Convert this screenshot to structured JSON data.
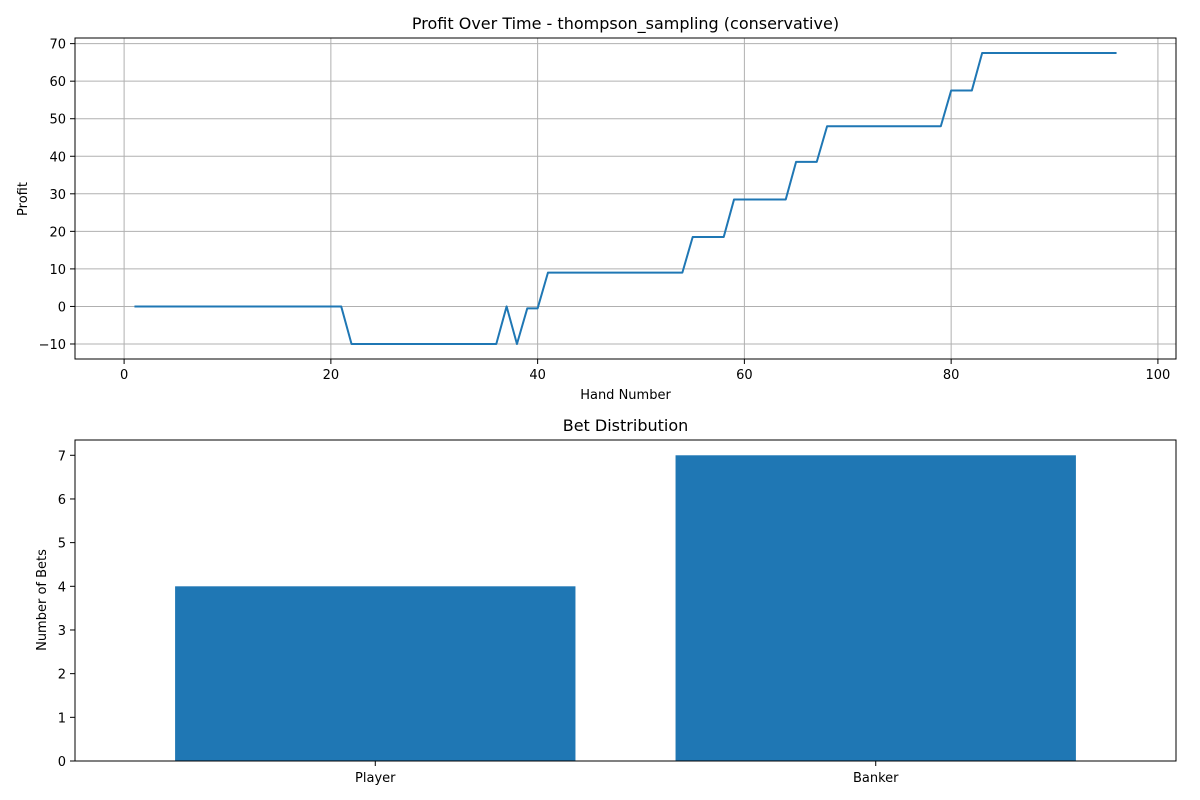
{
  "chart_data": [
    {
      "type": "line",
      "title": "Profit Over Time - thompson_sampling (conservative)",
      "xlabel": "Hand Number",
      "ylabel": "Profit",
      "xlim": [
        -4.75,
        101.75
      ],
      "ylim": [
        -14.0,
        71.5
      ],
      "xticks": [
        0,
        20,
        40,
        60,
        80,
        100
      ],
      "yticks": [
        -10,
        0,
        10,
        20,
        30,
        40,
        50,
        60,
        70
      ],
      "grid": true,
      "color": "#1f77b4",
      "series": [
        {
          "x": [
            1,
            2,
            3,
            4,
            5,
            6,
            7,
            8,
            9,
            10,
            11,
            12,
            13,
            14,
            15,
            16,
            17,
            18,
            19,
            20,
            21,
            22,
            23,
            24,
            25,
            26,
            27,
            28,
            29,
            30,
            31,
            32,
            33,
            34,
            35,
            36,
            37,
            38,
            39,
            40,
            41,
            42,
            43,
            44,
            45,
            46,
            47,
            48,
            49,
            50,
            51,
            52,
            53,
            54,
            55,
            56,
            57,
            58,
            59,
            60,
            61,
            62,
            63,
            64,
            65,
            66,
            67,
            68,
            69,
            70,
            71,
            72,
            73,
            74,
            75,
            76,
            77,
            78,
            79,
            80,
            81,
            82,
            83,
            84,
            85,
            86,
            87,
            88,
            89,
            90,
            91,
            92,
            93,
            94,
            95,
            96
          ],
          "y": [
            0,
            0,
            0,
            0,
            0,
            0,
            0,
            0,
            0,
            0,
            0,
            0,
            0,
            0,
            0,
            0,
            0,
            0,
            0,
            0,
            0,
            -10,
            -10,
            -10,
            -10,
            -10,
            -10,
            -10,
            -10,
            -10,
            -10,
            -10,
            -10,
            -10,
            -10,
            -10,
            0,
            -10,
            -0.5,
            -0.5,
            9,
            9,
            9,
            9,
            9,
            9,
            9,
            9,
            9,
            9,
            9,
            9,
            9,
            9,
            18.5,
            18.5,
            18.5,
            18.5,
            28.5,
            28.5,
            28.5,
            28.5,
            28.5,
            28.5,
            38.5,
            38.5,
            38.5,
            48,
            48,
            48,
            48,
            48,
            48,
            48,
            48,
            48,
            48,
            48,
            48,
            57.5,
            57.5,
            57.5,
            67.5,
            67.5,
            67.5,
            67.5,
            67.5,
            67.5,
            67.5,
            67.5,
            67.5,
            67.5,
            67.5,
            67.5,
            67.5,
            67.5
          ]
        }
      ]
    },
    {
      "type": "bar",
      "title": "Bet Distribution",
      "xlabel": "",
      "ylabel": "Number of Bets",
      "categories": [
        "Player",
        "Banker"
      ],
      "values": [
        4,
        7
      ],
      "ylim": [
        0,
        7.35
      ],
      "yticks": [
        0,
        1,
        2,
        3,
        4,
        5,
        6,
        7
      ],
      "grid": false,
      "color": "#1f77b4"
    }
  ]
}
